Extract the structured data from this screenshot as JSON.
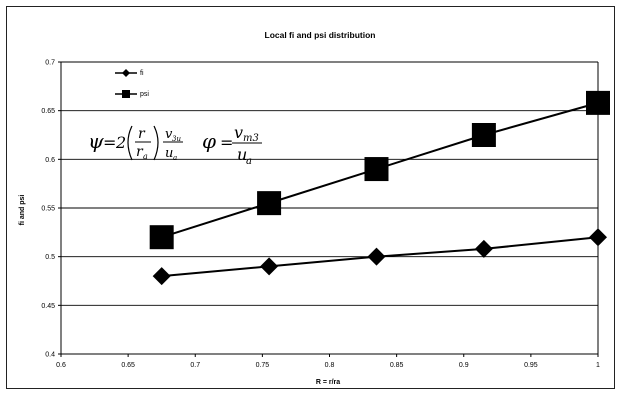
{
  "chart_data": {
    "type": "line",
    "title": "Local fi and psi distribution",
    "xlabel": "R = r/ra",
    "ylabel": "fi and psi",
    "xlim": [
      0.6,
      1.0
    ],
    "ylim": [
      0.4,
      0.7
    ],
    "x_ticks": [
      "0.6",
      "0.65",
      "0.7",
      "0.75",
      "0.8",
      "0.85",
      "0.9",
      "0.95",
      "1"
    ],
    "y_ticks": [
      "0.4",
      "0.45",
      "0.5",
      "0.55",
      "0.6",
      "0.65",
      "0.7"
    ],
    "grid": "horizontal",
    "legend_position": "top-left",
    "series": [
      {
        "name": "fi",
        "marker": "diamond",
        "color": "#000000",
        "x": [
          0.675,
          0.755,
          0.835,
          0.915,
          1.0
        ],
        "y": [
          0.48,
          0.49,
          0.5,
          0.508,
          0.52
        ]
      },
      {
        "name": "psi",
        "marker": "square",
        "color": "#000000",
        "x": [
          0.675,
          0.755,
          0.835,
          0.915,
          1.0
        ],
        "y": [
          0.52,
          0.555,
          0.59,
          0.625,
          0.658
        ]
      }
    ],
    "annotations": {
      "psi_formula": {
        "lhs": "ψ",
        "eq": "=",
        "coef": "2",
        "r": "r",
        "ra_base": "r",
        "ra_sub": "a",
        "vu_base": "v",
        "vu_sub": "3u",
        "ua_base": "u",
        "ua_sub": "a"
      },
      "phi_formula": {
        "lhs": "φ",
        "eq": "=",
        "num_base": "v",
        "num_sub": "m3",
        "den_base": "u",
        "den_sub": "a"
      }
    }
  }
}
